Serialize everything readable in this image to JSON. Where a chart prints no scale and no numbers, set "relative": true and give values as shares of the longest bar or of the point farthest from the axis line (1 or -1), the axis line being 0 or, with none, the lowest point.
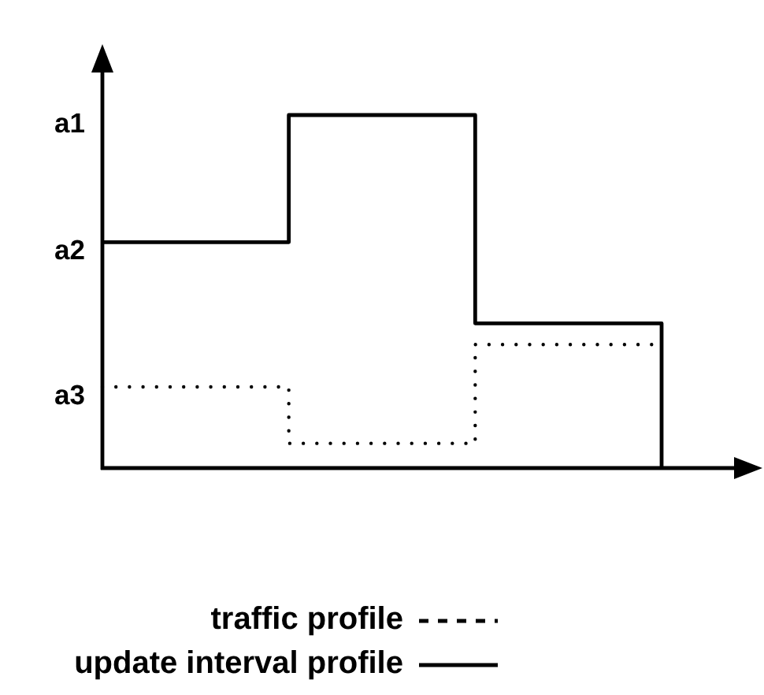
{
  "chart_data": {
    "type": "step",
    "relative": true,
    "categories": [
      null,
      null,
      null,
      null
    ],
    "series": [
      {
        "name": "traffic profile",
        "color": "#000000",
        "line_style": "dotted",
        "values": [
          0.23,
          0.07,
          0.35,
          0.35
        ]
      },
      {
        "name": "update interval profile",
        "color": "#000000",
        "line_style": "solid",
        "values": [
          0.64,
          1,
          0.41,
          0
        ]
      }
    ],
    "annotations": [
      "a1",
      "a2",
      "a3"
    ],
    "legend": "bottom"
  }
}
